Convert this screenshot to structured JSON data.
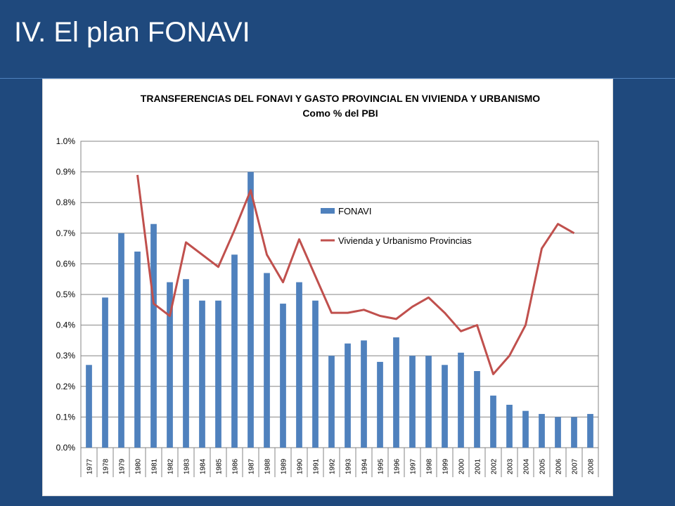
{
  "slide": {
    "title": "IV. El plan FONAVI"
  },
  "colors": {
    "background": "#1f497d",
    "bar": "#4f81bd",
    "line": "#c0504d",
    "grid": "#868686"
  },
  "chart_data": {
    "type": "bar",
    "title": "TRANSFERENCIAS DEL FONAVI Y GASTO PROVINCIAL EN VIVIENDA Y URBANISMO",
    "subtitle": "Como % del PBI",
    "xlabel": "",
    "ylabel": "",
    "ylim": [
      0,
      1.0
    ],
    "yticks": [
      "0.0%",
      "0.1%",
      "0.2%",
      "0.3%",
      "0.4%",
      "0.5%",
      "0.6%",
      "0.7%",
      "0.8%",
      "0.9%",
      "1.0%"
    ],
    "grid": true,
    "legend_position": "center-right",
    "categories": [
      "1977",
      "1978",
      "1979",
      "1980",
      "1981",
      "1982",
      "1983",
      "1984",
      "1985",
      "1986",
      "1987",
      "1988",
      "1989",
      "1990",
      "1991",
      "1992",
      "1993",
      "1994",
      "1995",
      "1996",
      "1997",
      "1998",
      "1999",
      "2000",
      "2001",
      "2002",
      "2003",
      "2004",
      "2005",
      "2006",
      "2007",
      "2008"
    ],
    "series": [
      {
        "name": "FONAVI",
        "type": "bar",
        "values": [
          0.27,
          0.49,
          0.7,
          0.64,
          0.73,
          0.54,
          0.55,
          0.48,
          0.48,
          0.63,
          0.9,
          0.57,
          0.47,
          0.54,
          0.48,
          0.3,
          0.34,
          0.35,
          0.28,
          0.36,
          0.3,
          0.3,
          0.27,
          0.31,
          0.25,
          0.17,
          0.14,
          0.12,
          0.11,
          0.1,
          0.1,
          0.11
        ]
      },
      {
        "name": "Vivienda y Urbanismo Provincias",
        "type": "line",
        "values": [
          null,
          null,
          null,
          0.89,
          0.47,
          0.43,
          0.67,
          0.63,
          0.59,
          0.71,
          0.84,
          0.63,
          0.54,
          0.68,
          0.56,
          0.44,
          0.44,
          0.45,
          0.43,
          0.42,
          0.46,
          0.49,
          0.44,
          0.38,
          0.4,
          0.24,
          0.3,
          0.4,
          0.65,
          0.73,
          0.7,
          null
        ]
      }
    ]
  }
}
